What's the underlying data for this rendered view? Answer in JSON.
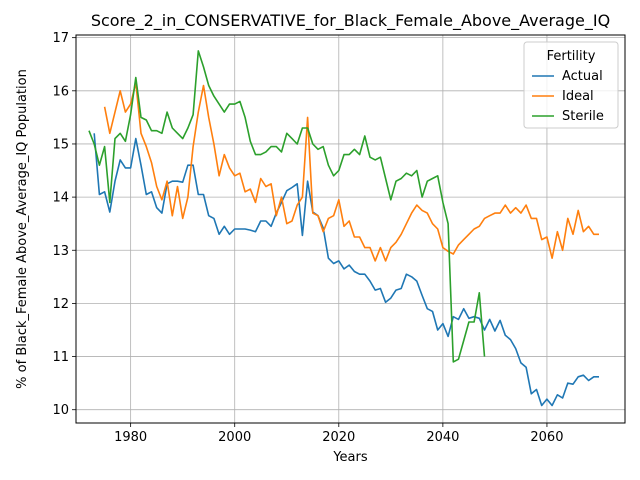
{
  "chart_data": {
    "type": "line",
    "title": "Score_2_in_CONSERVATIVE_for_Black_Female_Above_Average_IQ",
    "xlabel": "Years",
    "ylabel": "% of Black_Female Above_Average_IQ Population",
    "xlim": [
      1969.5,
      2075
    ],
    "ylim": [
      9.75,
      17.05
    ],
    "xticks": [
      1980,
      2000,
      2020,
      2040,
      2060
    ],
    "yticks": [
      10,
      11,
      12,
      13,
      14,
      15,
      16,
      17
    ],
    "grid": true,
    "legend": {
      "title": "Fertility",
      "placement": "top-right"
    },
    "series": [
      {
        "name": "Actual",
        "color": "#1f77b4",
        "x": [
          1973,
          1974,
          1975,
          1976,
          1977,
          1978,
          1979,
          1980,
          1981,
          1982,
          1983,
          1984,
          1985,
          1986,
          1987,
          1988,
          1989,
          1990,
          1991,
          1992,
          1993,
          1994,
          1995,
          1996,
          1997,
          1998,
          1999,
          2000,
          2001,
          2002,
          2003,
          2004,
          2005,
          2006,
          2007,
          2008,
          2009,
          2010,
          2011,
          2012,
          2013,
          2014,
          2015,
          2016,
          2017,
          2018,
          2019,
          2020,
          2021,
          2022,
          2023,
          2024,
          2025,
          2026,
          2027,
          2028,
          2029,
          2030,
          2031,
          2032,
          2033,
          2034,
          2035,
          2036,
          2037,
          2038,
          2039,
          2040,
          2041,
          2042,
          2043,
          2044,
          2045,
          2046,
          2047,
          2048,
          2049,
          2050,
          2051,
          2052,
          2053,
          2054,
          2055,
          2056,
          2057,
          2058,
          2059,
          2060,
          2061,
          2062,
          2063,
          2064,
          2065,
          2066,
          2067,
          2068,
          2069,
          2070
        ],
        "y": [
          15.2,
          14.05,
          14.1,
          13.72,
          14.3,
          14.7,
          14.55,
          14.55,
          15.1,
          14.6,
          14.05,
          14.1,
          13.8,
          13.7,
          14.25,
          14.3,
          14.3,
          14.28,
          14.6,
          14.6,
          14.05,
          14.05,
          13.65,
          13.6,
          13.3,
          13.45,
          13.3,
          13.4,
          13.4,
          13.4,
          13.38,
          13.35,
          13.55,
          13.55,
          13.45,
          13.7,
          13.9,
          14.12,
          14.18,
          14.25,
          13.28,
          14.3,
          13.72,
          13.65,
          13.42,
          12.85,
          12.75,
          12.8,
          12.65,
          12.72,
          12.6,
          12.55,
          12.55,
          12.42,
          12.25,
          12.28,
          12.02,
          12.1,
          12.25,
          12.28,
          12.55,
          12.5,
          12.42,
          12.15,
          11.9,
          11.85,
          11.5,
          11.62,
          11.38,
          11.75,
          11.7,
          11.9,
          11.72,
          11.75,
          11.72,
          11.5,
          11.7,
          11.48,
          11.68,
          11.4,
          11.32,
          11.15,
          10.88,
          10.8,
          10.3,
          10.38,
          10.08,
          10.2,
          10.08,
          10.28,
          10.22,
          10.5,
          10.48,
          10.62,
          10.65,
          10.55,
          10.62,
          10.62
        ]
      },
      {
        "name": "Ideal",
        "color": "#ff7f0e",
        "x": [
          1975,
          1976,
          1977,
          1978,
          1979,
          1980,
          1981,
          1982,
          1983,
          1984,
          1985,
          1986,
          1987,
          1988,
          1989,
          1990,
          1991,
          1992,
          1993,
          1994,
          1995,
          1996,
          1997,
          1998,
          1999,
          2000,
          2001,
          2002,
          2003,
          2004,
          2005,
          2006,
          2007,
          2008,
          2009,
          2010,
          2011,
          2012,
          2013,
          2014,
          2015,
          2016,
          2017,
          2018,
          2019,
          2020,
          2021,
          2022,
          2023,
          2024,
          2025,
          2026,
          2027,
          2028,
          2029,
          2030,
          2031,
          2032,
          2033,
          2034,
          2035,
          2036,
          2037,
          2038,
          2039,
          2040,
          2041,
          2042,
          2043,
          2044,
          2045,
          2046,
          2047,
          2048,
          2049,
          2050,
          2051,
          2052,
          2053,
          2054,
          2055,
          2056,
          2057,
          2058,
          2059,
          2060,
          2061,
          2062,
          2063,
          2064,
          2065,
          2066,
          2067,
          2068,
          2069,
          2070
        ],
        "y": [
          15.7,
          15.2,
          15.6,
          16.0,
          15.6,
          15.75,
          16.15,
          15.2,
          14.95,
          14.65,
          14.2,
          13.95,
          14.3,
          13.65,
          14.2,
          13.6,
          14.0,
          14.95,
          15.6,
          16.1,
          15.5,
          15.0,
          14.4,
          14.8,
          14.55,
          14.4,
          14.45,
          14.1,
          14.15,
          13.9,
          14.35,
          14.2,
          14.25,
          13.65,
          14.0,
          13.5,
          13.55,
          13.85,
          14.0,
          15.5,
          13.7,
          13.65,
          13.35,
          13.6,
          13.65,
          13.95,
          13.45,
          13.55,
          13.25,
          13.25,
          13.05,
          13.05,
          12.8,
          13.05,
          12.8,
          13.05,
          13.15,
          13.3,
          13.5,
          13.7,
          13.85,
          13.75,
          13.7,
          13.5,
          13.4,
          13.05,
          12.98,
          12.93,
          13.1,
          13.2,
          13.3,
          13.4,
          13.45,
          13.6,
          13.65,
          13.7,
          13.7,
          13.85,
          13.7,
          13.8,
          13.7,
          13.85,
          13.6,
          13.6,
          13.2,
          13.25,
          12.85,
          13.35,
          13.0,
          13.6,
          13.3,
          13.75,
          13.35,
          13.45,
          13.3,
          13.3
        ]
      },
      {
        "name": "Sterile",
        "color": "#2ca02c",
        "x": [
          1972,
          1973,
          1974,
          1975,
          1976,
          1977,
          1978,
          1979,
          1980,
          1981,
          1982,
          1983,
          1984,
          1985,
          1986,
          1987,
          1988,
          1989,
          1990,
          1991,
          1992,
          1993,
          1994,
          1995,
          1996,
          1997,
          1998,
          1999,
          2000,
          2001,
          2002,
          2003,
          2004,
          2005,
          2006,
          2007,
          2008,
          2009,
          2010,
          2011,
          2012,
          2013,
          2014,
          2015,
          2016,
          2017,
          2018,
          2019,
          2020,
          2021,
          2022,
          2023,
          2024,
          2025,
          2026,
          2027,
          2028,
          2029,
          2030,
          2031,
          2032,
          2033,
          2034,
          2035,
          2036,
          2037,
          2038,
          2039,
          2040,
          2041,
          2042,
          2043,
          2044,
          2045,
          2046,
          2047,
          2048
        ],
        "y": [
          15.25,
          15.0,
          14.6,
          14.95,
          13.9,
          15.1,
          15.2,
          15.05,
          15.55,
          16.25,
          15.5,
          15.45,
          15.25,
          15.25,
          15.2,
          15.6,
          15.3,
          15.2,
          15.1,
          15.3,
          15.55,
          16.75,
          16.45,
          16.1,
          15.9,
          15.75,
          15.6,
          15.75,
          15.75,
          15.8,
          15.5,
          15.05,
          14.8,
          14.8,
          14.85,
          14.95,
          14.95,
          14.85,
          15.2,
          15.1,
          15.0,
          15.3,
          15.3,
          15.0,
          14.9,
          14.95,
          14.6,
          14.4,
          14.5,
          14.8,
          14.8,
          14.9,
          14.8,
          15.15,
          14.75,
          14.7,
          14.75,
          14.35,
          13.95,
          14.3,
          14.35,
          14.45,
          14.4,
          14.5,
          14.0,
          14.3,
          14.35,
          14.4,
          13.9,
          13.5,
          10.9,
          10.95,
          11.3,
          11.65,
          11.65,
          12.2,
          11.0
        ]
      }
    ]
  }
}
